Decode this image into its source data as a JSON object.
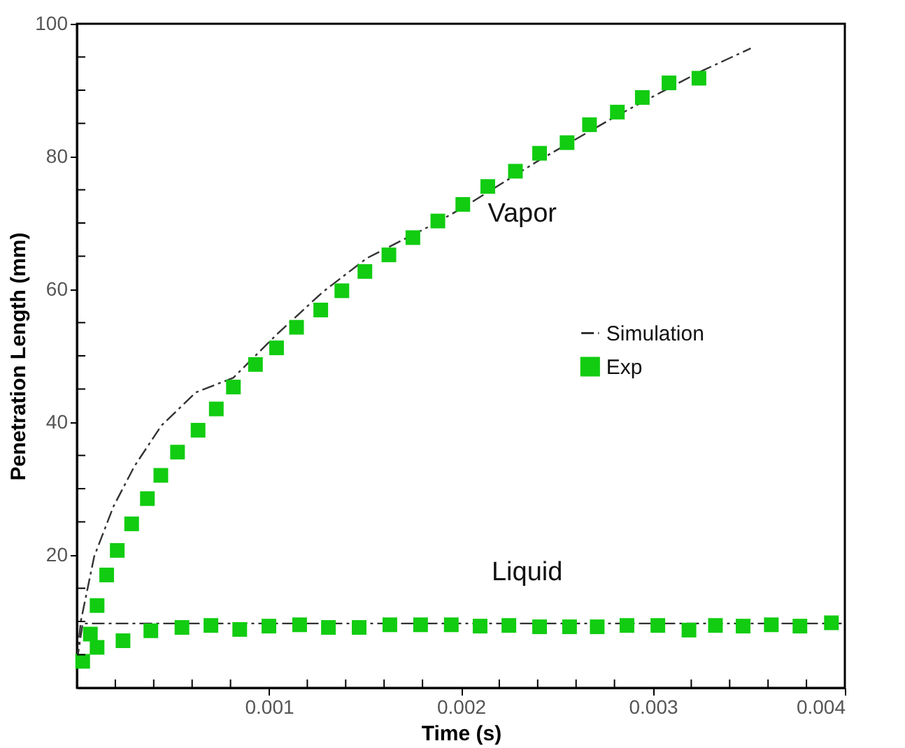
{
  "chart_data": {
    "type": "scatter",
    "xlabel": "Time (s)",
    "ylabel": "Penetration Length (mm)",
    "xlim": [
      0,
      0.004
    ],
    "ylim": [
      0,
      100
    ],
    "xticks": [
      {
        "value": 0.0002,
        "label": null
      },
      {
        "value": 0.0004,
        "label": null
      },
      {
        "value": 0.0006,
        "label": null
      },
      {
        "value": 0.0008,
        "label": null
      },
      0.001,
      {
        "value": 0.0012,
        "label": null
      },
      {
        "value": 0.0014,
        "label": null
      },
      {
        "value": 0.0016,
        "label": null
      },
      {
        "value": 0.0018,
        "label": null
      },
      0.002,
      {
        "value": 0.0022,
        "label": null
      },
      {
        "value": 0.0024,
        "label": null
      },
      {
        "value": 0.0026,
        "label": null
      },
      {
        "value": 0.0028,
        "label": null
      },
      0.003,
      {
        "value": 0.0032,
        "label": null
      },
      {
        "value": 0.0034,
        "label": null
      },
      {
        "value": 0.0036,
        "label": null
      },
      {
        "value": 0.0038,
        "label": null
      },
      0.004
    ],
    "yticks": [
      {
        "value": 5,
        "label": null
      },
      {
        "value": 10,
        "label": null
      },
      {
        "value": 15,
        "label": null
      },
      20,
      {
        "value": 25,
        "label": null
      },
      {
        "value": 30,
        "label": null
      },
      {
        "value": 35,
        "label": null
      },
      40,
      {
        "value": 45,
        "label": null
      },
      {
        "value": 50,
        "label": null
      },
      {
        "value": 55,
        "label": null
      },
      60,
      {
        "value": 65,
        "label": null
      },
      {
        "value": 70,
        "label": null
      },
      {
        "value": 75,
        "label": null
      },
      80,
      {
        "value": 85,
        "label": null
      },
      {
        "value": 90,
        "label": null
      },
      {
        "value": 95,
        "label": null
      },
      100
    ],
    "grid": false,
    "legend": "right",
    "series": [
      {
        "name": "Simulation",
        "type": "line",
        "line_style": "dashed",
        "marker": "none",
        "color": "#333333",
        "x": [
          0,
          2e-05,
          9e-05,
          0.00019,
          0.0003,
          0.00044,
          0.00062,
          0.000815,
          0.00104,
          0.00128,
          0.00151,
          0.00185,
          0.00201,
          0.00241,
          0.002815,
          0.00324,
          0.003375,
          0.00351
        ],
        "values": [
          4,
          10,
          19.8,
          27.3,
          33.4,
          39.5,
          44.5,
          46.7,
          53.2,
          59.6,
          64.7,
          69.7,
          72.3,
          79.5,
          86.2,
          92.7,
          94.5,
          96.3
        ]
      },
      {
        "type": "line",
        "line_style": "dashed",
        "marker": "none",
        "color": "#333333",
        "x": [
          0,
          3e-05,
          0.004
        ],
        "values": [
          4,
          9.7,
          9.7
        ]
      },
      {
        "name": "Exp",
        "marker": "square",
        "color": "#11cc11",
        "x": [
          7e-05,
          0.000105,
          0.000155,
          0.00021,
          0.000285,
          0.000367,
          0.000437,
          0.000524,
          0.000631,
          0.000726,
          0.000815,
          0.00093,
          0.00104,
          0.001144,
          0.00127,
          0.00138,
          0.0015,
          0.001625,
          0.00175,
          0.00188,
          0.00201,
          0.00214,
          0.002284,
          0.00241,
          0.002553,
          0.00267,
          0.002815,
          0.002945,
          0.003084,
          0.00324
        ],
        "values": [
          8.1,
          12.4,
          17,
          20.7,
          24.7,
          28.5,
          32,
          35.5,
          38.8,
          42,
          45.3,
          48.7,
          51.2,
          54.3,
          56.9,
          59.8,
          62.7,
          65.2,
          67.8,
          70.3,
          72.8,
          75.5,
          77.8,
          80.5,
          82.1,
          84.8,
          86.7,
          88.9,
          91.1,
          91.8
        ]
      },
      {
        "marker": "square",
        "color": "#11cc11",
        "x": [
          3e-05,
          0.000105,
          0.00024,
          0.000385,
          0.000547,
          0.000698,
          0.000848,
          0.001,
          0.00116,
          0.00131,
          0.00147,
          0.00163,
          0.00179,
          0.00195,
          0.0021,
          0.00225,
          0.00241,
          0.002566,
          0.00271,
          0.002865,
          0.003026,
          0.003188,
          0.003326,
          0.00347,
          0.003617,
          0.003766,
          0.00393
        ],
        "values": [
          4,
          6.1,
          7.1,
          8.6,
          9.1,
          9.4,
          8.8,
          9.3,
          9.5,
          9.1,
          9.1,
          9.5,
          9.5,
          9.5,
          9.3,
          9.4,
          9.2,
          9.2,
          9.2,
          9.4,
          9.4,
          8.7,
          9.4,
          9.3,
          9.5,
          9.3,
          9.8
        ]
      }
    ],
    "annotations": [
      "Vapor",
      "Liquid"
    ]
  }
}
